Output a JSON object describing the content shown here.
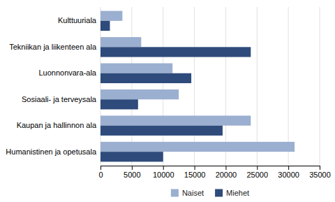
{
  "chart_data": {
    "type": "bar",
    "orientation": "horizontal",
    "categories": [
      "Humanistinen ja opetusala",
      "Kaupan ja hallinnon ala",
      "Sosiaali- ja terveysala",
      "Luonnonvara-ala",
      "Tekniikan ja liikenteen ala",
      "Kulttuuriala"
    ],
    "series": [
      {
        "name": "Naiset",
        "color": "#9BAFD0",
        "values": [
          31000,
          24000,
          12500,
          11500,
          6500,
          3500
        ]
      },
      {
        "name": "Miehet",
        "color": "#2E4B7B",
        "values": [
          10000,
          19500,
          6000,
          14500,
          24000,
          1500
        ]
      }
    ],
    "xlim": [
      0,
      35000
    ],
    "xticks": [
      0,
      5000,
      10000,
      15000,
      20000,
      25000,
      30000,
      35000
    ],
    "grid": true,
    "legend": "bottom"
  }
}
